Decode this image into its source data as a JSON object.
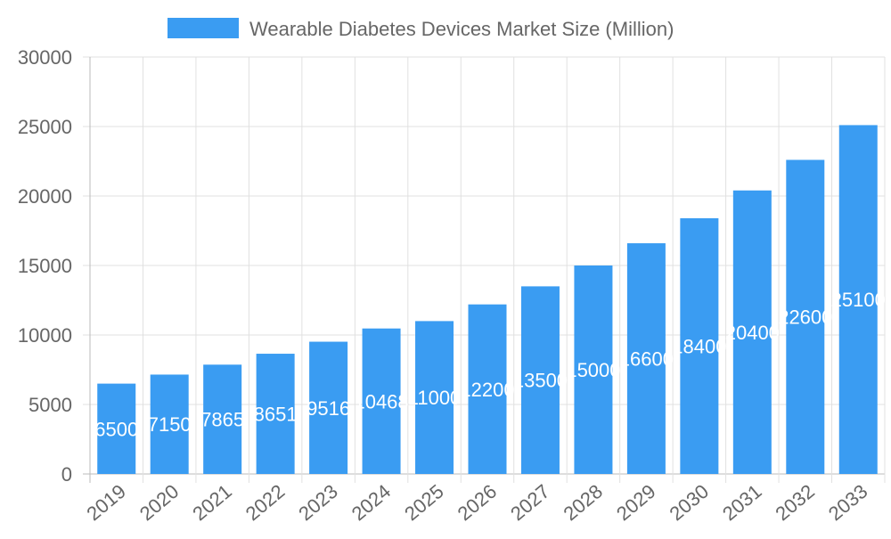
{
  "chart_data": {
    "type": "bar",
    "categories": [
      "2019",
      "2020",
      "2021",
      "2022",
      "2023",
      "2024",
      "2025",
      "2026",
      "2027",
      "2028",
      "2029",
      "2030",
      "2031",
      "2032",
      "2033"
    ],
    "series": [
      {
        "name": "Wearable Diabetes Devices Market Size (Million)",
        "values": [
          6500,
          7150,
          7865,
          8651,
          9516,
          10468,
          11000,
          12200,
          13500,
          15000,
          16600,
          18400,
          20400,
          22600,
          25100
        ]
      }
    ],
    "ylim": [
      0,
      30000
    ],
    "yticks": [
      0,
      5000,
      10000,
      15000,
      20000,
      25000,
      30000
    ],
    "grid": true,
    "legend": "top",
    "colors": {
      "bar": "#3a9cf2",
      "grid": "#e0e0e0",
      "text": "#666666"
    }
  }
}
